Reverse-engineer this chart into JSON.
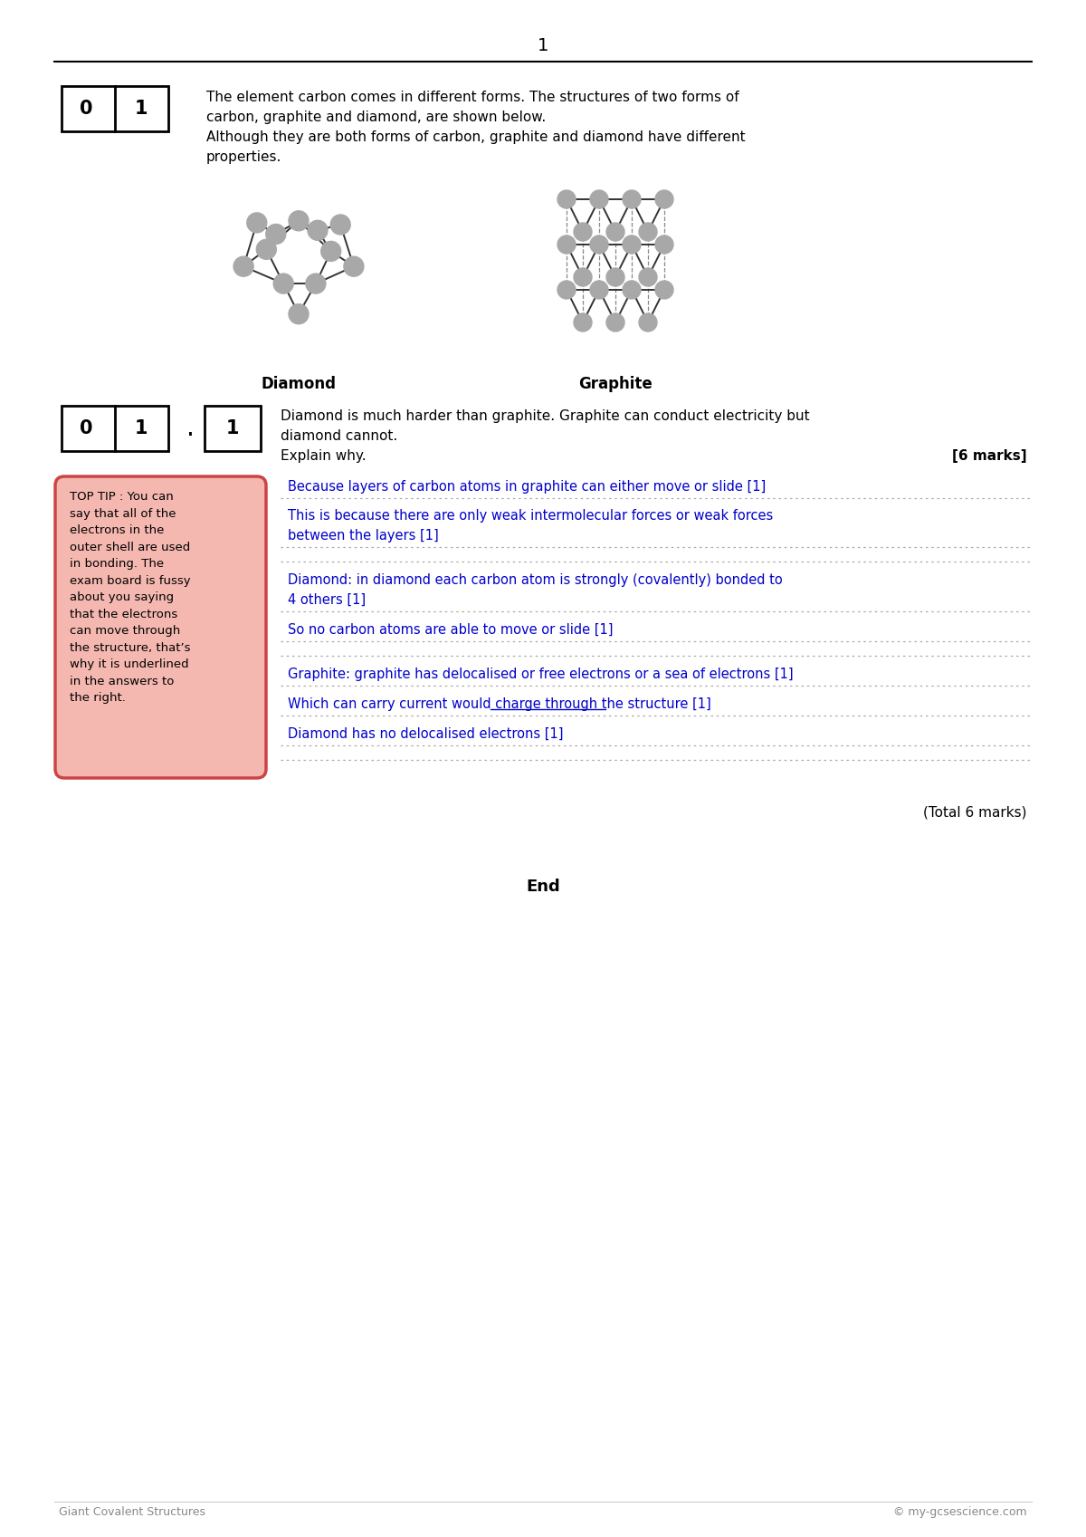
{
  "page_number": "1",
  "bg_color": "#ffffff",
  "q1_text_line1": "The element carbon comes in different forms. The structures of two forms of",
  "q1_text_line2": "carbon, graphite and diamond, are shown below.",
  "q1_text_line3": "Although they are both forms of carbon, graphite and diamond have different",
  "q1_text_line4": "properties.",
  "diamond_label": "Diamond",
  "graphite_label": "Graphite",
  "q2_text_line1": "Diamond is much harder than graphite. Graphite can conduct electricity but",
  "q2_text_line2": "diamond cannot.",
  "q2_text_line3": "Explain why.",
  "marks_text": "[6 marks]",
  "answer1": "Because layers of carbon atoms in graphite can either move or slide [1]",
  "answer2a": "This is because there are only weak intermolecular forces or weak forces",
  "answer2b": "between the layers [1]",
  "answer3a": "Diamond: in diamond each carbon atom is strongly (covalently) bonded to",
  "answer3b": "4 others [1]",
  "answer4": "So no carbon atoms are able to move or slide [1]",
  "answer5": "Graphite: graphite has delocalised or free electrons or a sea of electrons [1]",
  "answer6_pre": "Which can carry current would charge ",
  "answer6_underlined": "through the structure",
  "answer6_post": " [1]",
  "answer7": "Diamond has no delocalised electrons [1]",
  "toptip": "TOP TIP : You can\nsay that all of the\nelectrons in the\nouter shell are used\nin bonding. The\nexam board is fussy\nabout you saying\nthat the electrons\ncan move through\nthe structure, that’s\nwhy it is underlined\nin the answers to\nthe right.",
  "toptip_bg": "#f4b8b0",
  "toptip_border": "#cc4444",
  "answer_color": "#0000cc",
  "total_marks": "(Total 6 marks)",
  "end_text": "End",
  "footer_left": "Giant Covalent Structures",
  "footer_right": "© my-gcsescience.com"
}
